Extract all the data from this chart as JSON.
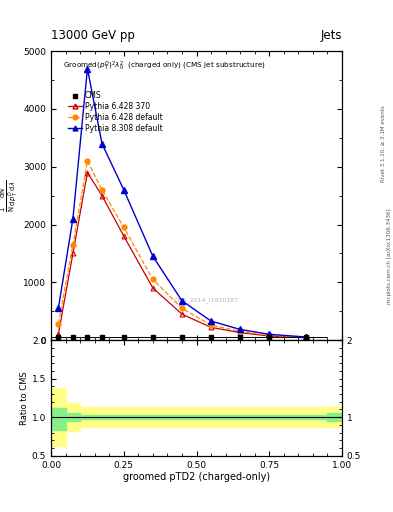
{
  "title_top": "13000 GeV pp",
  "title_right": "Jets",
  "plot_title": "Groomed$(p_T^D)^2\\lambda_0^2$  (charged only) (CMS jet substructure)",
  "xlabel": "groomed pTD2 (charged-only)",
  "ylabel_ratio": "Ratio to CMS",
  "right_label": "Rivet 3.1.10, ≥ 3.1M events",
  "right_label2": "mcplots.cern.ch [arXiv:1306.3436]",
  "watermark": "CMS_2014_I1920187",
  "x_data": [
    0.025,
    0.075,
    0.125,
    0.175,
    0.25,
    0.35,
    0.45,
    0.55,
    0.65,
    0.75,
    0.875
  ],
  "cms_y": [
    50,
    50,
    50,
    50,
    50,
    50,
    50,
    50,
    50,
    50,
    50
  ],
  "cms_xerr_lo": [
    0.025,
    0.025,
    0.025,
    0.025,
    0.05,
    0.05,
    0.05,
    0.05,
    0.05,
    0.05,
    0.075
  ],
  "cms_xerr_hi": [
    0.025,
    0.025,
    0.025,
    0.025,
    0.05,
    0.05,
    0.05,
    0.05,
    0.05,
    0.05,
    0.075
  ],
  "p6_370_x": [
    0.025,
    0.075,
    0.125,
    0.175,
    0.25,
    0.35,
    0.45,
    0.55,
    0.65,
    0.75,
    0.875
  ],
  "p6_370_y": [
    100,
    1500,
    2900,
    2500,
    1800,
    900,
    450,
    220,
    130,
    70,
    40
  ],
  "p6_def_x": [
    0.025,
    0.075,
    0.125,
    0.175,
    0.25,
    0.35,
    0.45,
    0.55,
    0.65,
    0.75,
    0.875
  ],
  "p6_def_y": [
    280,
    1650,
    3100,
    2600,
    1950,
    1050,
    550,
    260,
    150,
    80,
    48
  ],
  "p8_def_x": [
    0.025,
    0.075,
    0.125,
    0.175,
    0.25,
    0.35,
    0.45,
    0.55,
    0.65,
    0.75,
    0.875
  ],
  "p8_def_y": [
    550,
    2100,
    4700,
    3400,
    2600,
    1450,
    680,
    330,
    185,
    100,
    55
  ],
  "cms_color": "#000000",
  "p6_370_color": "#cc0000",
  "p6_def_color": "#ff8800",
  "p8_def_color": "#0000cc",
  "ylim_main": [
    0,
    5000
  ],
  "yticks_main": [
    0,
    1000,
    2000,
    3000,
    4000,
    5000
  ],
  "ylim_ratio": [
    0.5,
    2.0
  ],
  "xlim": [
    0.0,
    1.0
  ],
  "ratio_x_edges": [
    0.0,
    0.05,
    0.1,
    0.2,
    0.3,
    0.4,
    0.5,
    0.6,
    0.7,
    0.8,
    0.95,
    1.0
  ],
  "ratio_green_lo": [
    0.83,
    0.95,
    0.97,
    0.97,
    0.97,
    0.97,
    0.97,
    0.97,
    0.97,
    0.97,
    0.95
  ],
  "ratio_green_hi": [
    1.12,
    1.05,
    1.03,
    1.03,
    1.03,
    1.03,
    1.03,
    1.03,
    1.03,
    1.03,
    1.05
  ],
  "ratio_yellow_lo": [
    0.62,
    0.82,
    0.87,
    0.87,
    0.87,
    0.87,
    0.87,
    0.87,
    0.87,
    0.87,
    0.87
  ],
  "ratio_yellow_hi": [
    1.38,
    1.18,
    1.13,
    1.13,
    1.13,
    1.13,
    1.13,
    1.13,
    1.13,
    1.13,
    1.13
  ]
}
